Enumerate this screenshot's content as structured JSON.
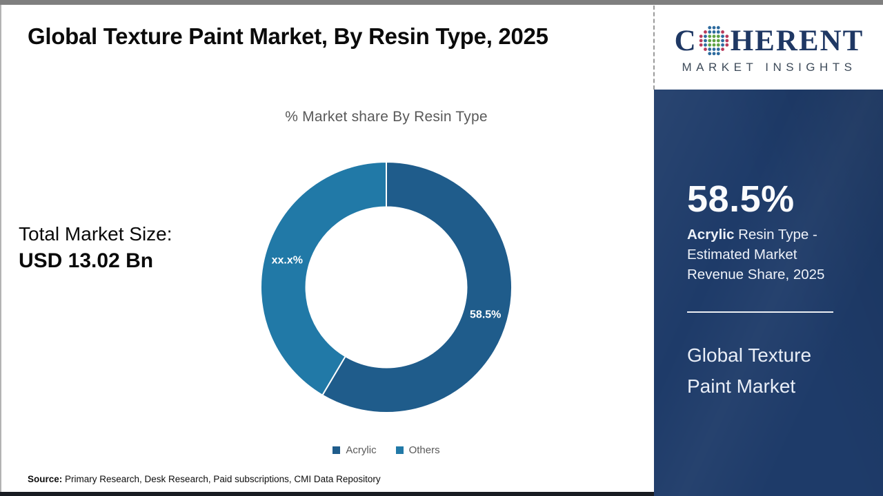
{
  "header": {
    "title": "Global Texture Paint Market, By Resin Type, 2025"
  },
  "logo": {
    "word_prefix": "C",
    "word_suffix": "HERENT",
    "tagline": "MARKET INSIGHTS",
    "navy": "#1f3864",
    "globe_colors": {
      "outer": "#b93a5b",
      "mid": "#2e6b9e",
      "core": "#5fa344"
    }
  },
  "stats": {
    "total_label": "Total Market Size:",
    "total_value": "USD 13.02 Bn"
  },
  "chart_data": {
    "type": "pie",
    "donut_hole_ratio": 0.64,
    "title": "% Market share By Resin Type",
    "start_angle_deg": 0,
    "direction": "clockwise",
    "legend_position": "bottom",
    "series": [
      {
        "name": "Acrylic",
        "value": 58.5,
        "data_label": "58.5%",
        "color": "#1f5c8b"
      },
      {
        "name": "Others",
        "value": 41.5,
        "data_label": "xx.x%",
        "color": "#2179a7"
      }
    ]
  },
  "sidebar": {
    "share_value": "58.5%",
    "share_desc_bold": "Acrylic",
    "share_desc_rest": " Resin Type - Estimated Market Revenue Share, 2025",
    "product_name": "Global Texture Paint Market",
    "background": "#1e3b69"
  },
  "footer": {
    "source_label": "Source:",
    "source_text": " Primary Research, Desk Research, Paid subscriptions, CMI Data Repository"
  }
}
